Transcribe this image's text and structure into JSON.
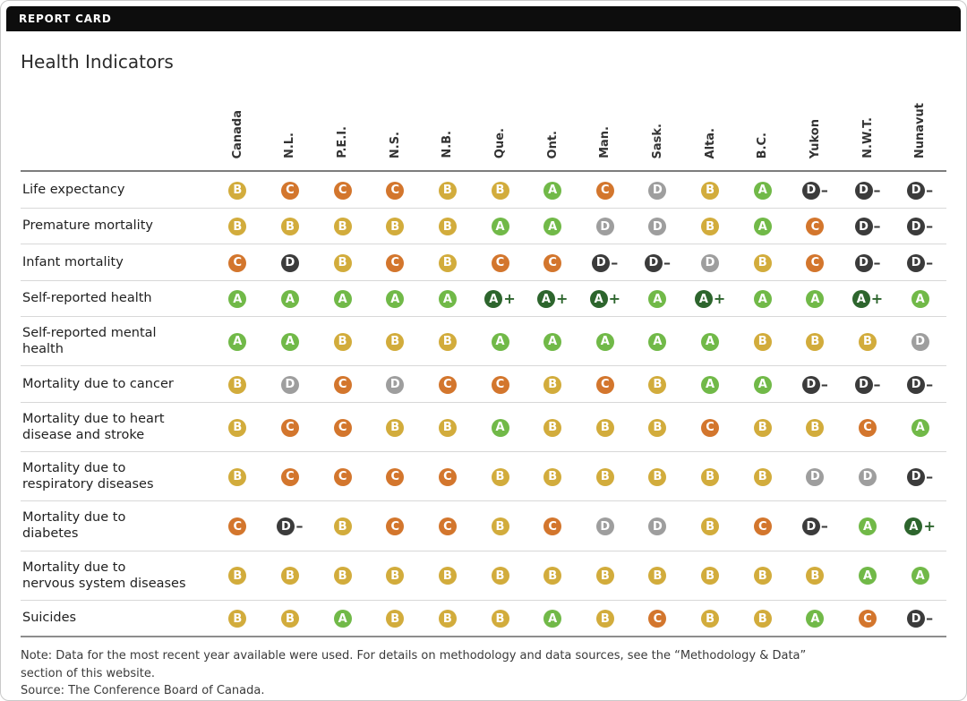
{
  "header": {
    "bar_label": "REPORT CARD"
  },
  "title": "Health Indicators",
  "chart_data": {
    "type": "table",
    "title": "Health Indicators",
    "columns": [
      "Canada",
      "N.L.",
      "P.E.I.",
      "N.S.",
      "N.B.",
      "Que.",
      "Ont.",
      "Man.",
      "Sask.",
      "Alta.",
      "B.C.",
      "Yukon",
      "N.W.T.",
      "Nunavut"
    ],
    "rows": [
      {
        "label": "Life expectancy",
        "grades": [
          "B",
          "C",
          "C",
          "C",
          "B",
          "B",
          "A",
          "C",
          "D",
          "B",
          "A",
          "D-",
          "D-",
          "D-"
        ]
      },
      {
        "label": "Premature mortality",
        "grades": [
          "B",
          "B",
          "B",
          "B",
          "B",
          "A",
          "A",
          "D",
          "D",
          "B",
          "A",
          "C",
          "D-",
          "D-"
        ]
      },
      {
        "label": "Infant mortality",
        "grades": [
          "C",
          "D_dark",
          "B",
          "C",
          "B",
          "C",
          "C",
          "D-",
          "D-",
          "D",
          "B",
          "C",
          "D-",
          "D-"
        ]
      },
      {
        "label": "Self-reported health",
        "grades": [
          "A",
          "A",
          "A",
          "A",
          "A",
          "A+",
          "A+",
          "A+",
          "A",
          "A+",
          "A",
          "A",
          "A+",
          "A"
        ]
      },
      {
        "label": "Self-reported mental\nhealth",
        "grades": [
          "A",
          "A",
          "B",
          "B",
          "B",
          "A",
          "A",
          "A",
          "A",
          "A",
          "B",
          "B",
          "B",
          "D"
        ]
      },
      {
        "label": "Mortality due to cancer",
        "grades": [
          "B",
          "D",
          "C",
          "D",
          "C",
          "C",
          "B",
          "C",
          "B",
          "A",
          "A",
          "D-",
          "D-",
          "D-"
        ]
      },
      {
        "label": "Mortality due to heart\ndisease and stroke",
        "grades": [
          "B",
          "C",
          "C",
          "B",
          "B",
          "A",
          "B",
          "B",
          "B",
          "C",
          "B",
          "B",
          "C",
          "A"
        ]
      },
      {
        "label": "Mortality due to\nrespiratory diseases",
        "grades": [
          "B",
          "C",
          "C",
          "C",
          "C",
          "B",
          "B",
          "B",
          "B",
          "B",
          "B",
          "D",
          "D",
          "D-"
        ]
      },
      {
        "label": "Mortality due to\ndiabetes",
        "grades": [
          "C",
          "D-",
          "B",
          "C",
          "C",
          "B",
          "C",
          "D",
          "D",
          "B",
          "C",
          "D-",
          "A",
          "A+"
        ]
      },
      {
        "label": "Mortality due to\nnervous system diseases",
        "grades": [
          "B",
          "B",
          "B",
          "B",
          "B",
          "B",
          "B",
          "B",
          "B",
          "B",
          "B",
          "B",
          "A",
          "A"
        ]
      },
      {
        "label": "Suicides",
        "grades": [
          "B",
          "B",
          "A",
          "B",
          "B",
          "B",
          "A",
          "B",
          "C",
          "B",
          "B",
          "A",
          "C",
          "D-"
        ]
      }
    ]
  },
  "grade_styles": {
    "A+": {
      "display": "A",
      "fill": "#2d652d",
      "suffix": "+"
    },
    "A": {
      "display": "A",
      "fill": "#71b948"
    },
    "B": {
      "display": "B",
      "fill": "#d2ac3c"
    },
    "C": {
      "display": "C",
      "fill": "#d3762d"
    },
    "D": {
      "display": "D",
      "fill": "#9e9e9e"
    },
    "D_dark": {
      "display": "D",
      "fill": "#3b3b3b"
    },
    "D-": {
      "display": "D",
      "fill": "#3b3b3b",
      "suffix": "–"
    }
  },
  "note": "Note: Data for the most recent year available were used. For details on methodology and data sources, see the “Methodology & Data”\nsection of this website.",
  "source": "Source: The Conference Board of Canada."
}
